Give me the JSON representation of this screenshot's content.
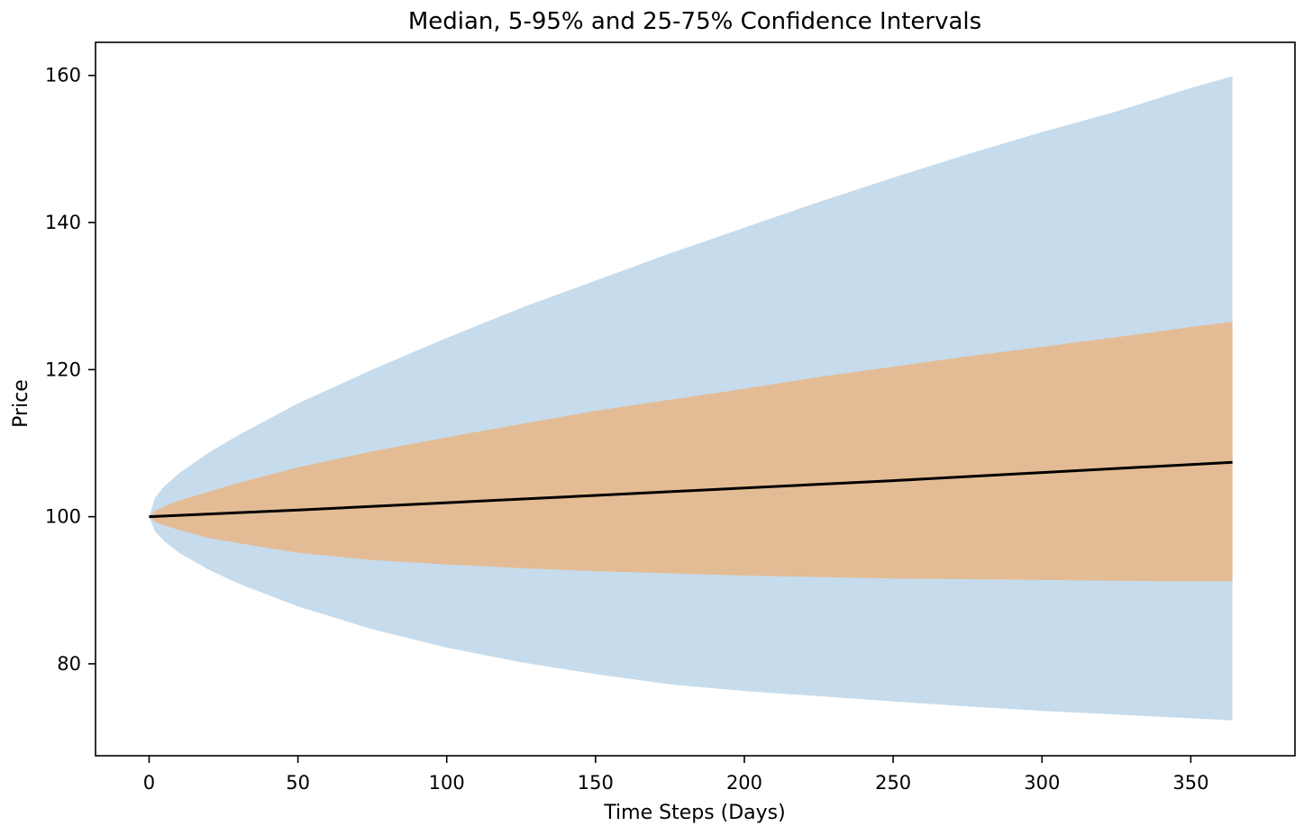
{
  "chart_data": {
    "type": "area",
    "title": "Median, 5-95% and 25-75% Confidence Intervals",
    "xlabel": "Time Steps (Days)",
    "ylabel": "Price",
    "xlim": [
      -18,
      385
    ],
    "ylim": [
      67.5,
      164.5
    ],
    "x_ticks": [
      0,
      50,
      100,
      150,
      200,
      250,
      300,
      350
    ],
    "y_ticks": [
      80,
      100,
      120,
      140,
      160
    ],
    "grid": false,
    "legend": "none",
    "series": [
      {
        "kind": "band",
        "color": "#c6dcec",
        "x": [
          0,
          2,
          5,
          10,
          20,
          30,
          50,
          75,
          100,
          125,
          150,
          175,
          200,
          225,
          250,
          275,
          300,
          325,
          350,
          364
        ],
        "upper": [
          100,
          102.6,
          104.1,
          105.9,
          108.7,
          111.1,
          115.4,
          120.0,
          124.3,
          128.4,
          132.1,
          135.8,
          139.3,
          142.8,
          146.1,
          149.3,
          152.3,
          155.1,
          158.3,
          159.9
        ],
        "lower": [
          100,
          98.0,
          96.7,
          95.1,
          92.8,
          90.9,
          87.8,
          84.7,
          82.2,
          80.2,
          78.6,
          77.2,
          76.3,
          75.6,
          74.9,
          74.2,
          73.6,
          73.1,
          72.6,
          72.3
        ]
      },
      {
        "kind": "band",
        "color": "#e3bc95",
        "x": [
          0,
          2,
          5,
          10,
          20,
          30,
          50,
          75,
          100,
          125,
          150,
          175,
          200,
          225,
          250,
          275,
          300,
          325,
          350,
          364
        ],
        "upper": [
          100,
          100.8,
          101.4,
          102.2,
          103.4,
          104.6,
          106.7,
          108.9,
          110.8,
          112.6,
          114.4,
          115.9,
          117.4,
          119.0,
          120.4,
          121.8,
          123.1,
          124.4,
          125.8,
          126.5
        ],
        "lower": [
          100,
          99.3,
          98.8,
          98.2,
          97.1,
          96.4,
          95.1,
          94.1,
          93.5,
          93.0,
          92.6,
          92.3,
          92.0,
          91.8,
          91.6,
          91.5,
          91.4,
          91.3,
          91.2,
          91.2
        ]
      },
      {
        "kind": "line",
        "color": "#000000",
        "x": [
          0,
          50,
          100,
          150,
          200,
          250,
          300,
          350,
          364
        ],
        "y": [
          100,
          100.9,
          101.9,
          102.9,
          103.9,
          104.9,
          106.0,
          107.1,
          107.4
        ]
      }
    ]
  }
}
